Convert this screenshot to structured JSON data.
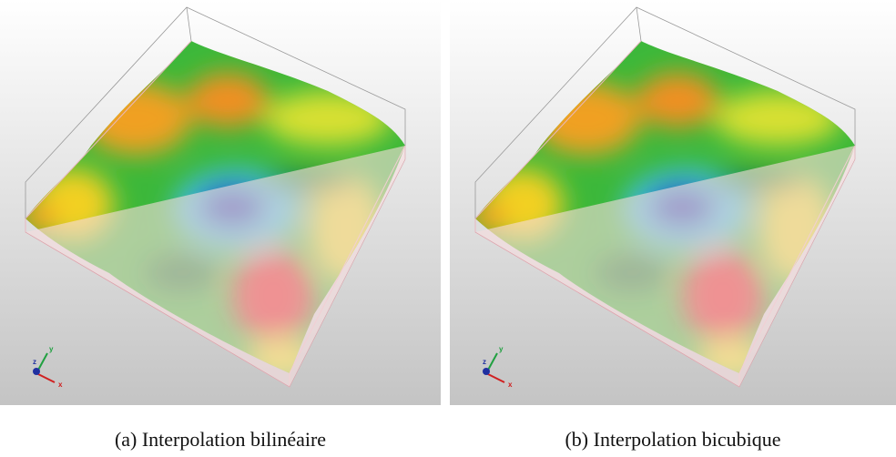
{
  "panels": [
    {
      "caption": "(a) Interpolation bilinéaire",
      "axes": {
        "x": "x",
        "y": "y",
        "z": "z"
      }
    },
    {
      "caption": "(b) Interpolation bicubique",
      "axes": {
        "x": "x",
        "y": "y",
        "z": "z"
      }
    }
  ]
}
